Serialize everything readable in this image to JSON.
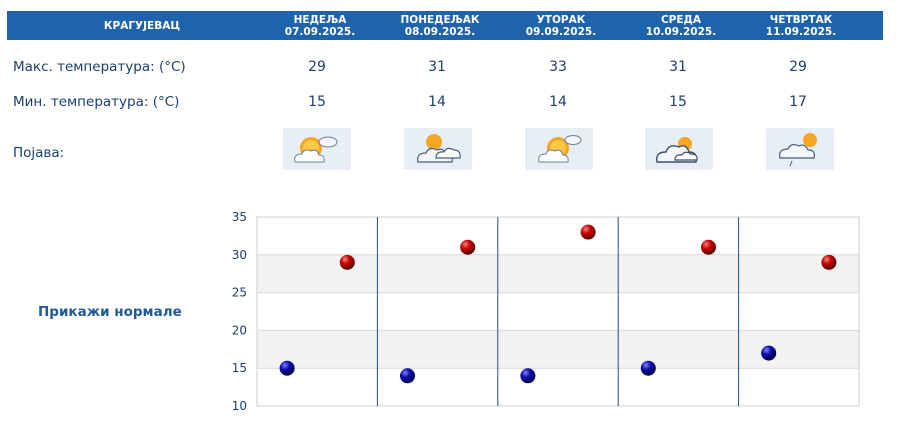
{
  "header": {
    "city": "КРАГУЈЕВАЦ",
    "days": [
      {
        "name": "НЕДЕЉА",
        "date": "07.09.2025."
      },
      {
        "name": "ПОНЕДЕЉАК",
        "date": "08.09.2025."
      },
      {
        "name": "УТОРАК",
        "date": "09.09.2025."
      },
      {
        "name": "СРЕДА",
        "date": "10.09.2025."
      },
      {
        "name": "ЧЕТВРТАК",
        "date": "11.09.2025."
      }
    ]
  },
  "rows": {
    "max_label": "Макс. температура: (°C)",
    "min_label": "Мин. температура: (°C)",
    "weather_label": "Појава:"
  },
  "max_temps": [
    "29",
    "31",
    "33",
    "31",
    "29"
  ],
  "min_temps": [
    "15",
    "14",
    "14",
    "15",
    "17"
  ],
  "weather_icons": [
    "sun-cloud-icon",
    "partly-cloudy-icon",
    "sun-cloud-icon",
    "cloudy-sun-icon",
    "cloud-rain-icon"
  ],
  "normals_link": "Прикажи нормале",
  "colors": {
    "header_bg": "#1f63ac",
    "max_marker": "#c40000",
    "min_marker": "#0a0aa8"
  },
  "chart_data": {
    "type": "scatter",
    "categories": [
      "07.09.2025.",
      "08.09.2025.",
      "09.09.2025.",
      "10.09.2025.",
      "11.09.2025."
    ],
    "series": [
      {
        "values": [
          29,
          31,
          33,
          31,
          29
        ],
        "color": "#c40000"
      },
      {
        "values": [
          15,
          14,
          14,
          15,
          17
        ],
        "color": "#0a0aa8"
      }
    ],
    "ylim": [
      10,
      35
    ],
    "yticks": [
      10,
      15,
      20,
      25,
      30,
      35
    ],
    "grid": true,
    "legend": "none"
  }
}
